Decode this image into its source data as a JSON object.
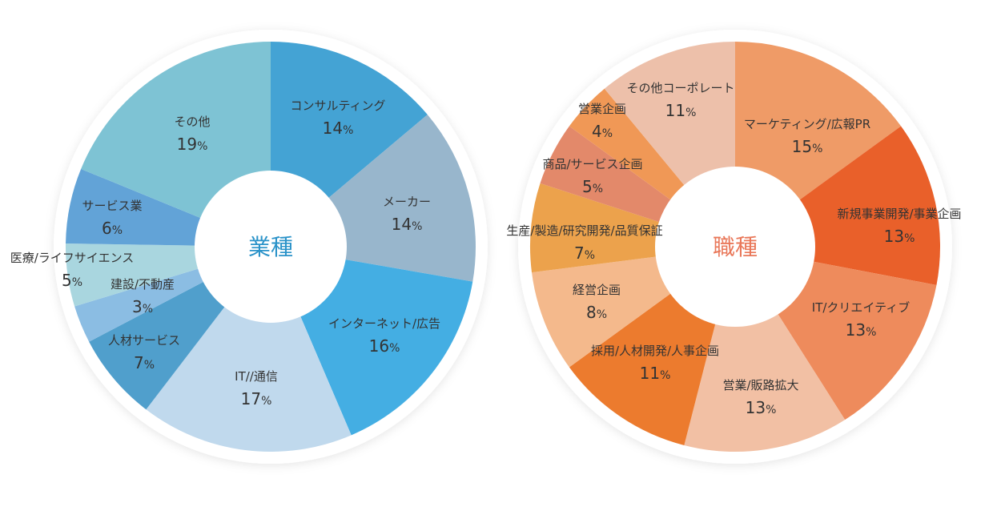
{
  "chart_data": [
    {
      "type": "pie",
      "title": "業種",
      "title_color": "#2b93c9",
      "donut": true,
      "start": "top, clockwise",
      "unit": "%",
      "slices": [
        {
          "label": "コンサルティング",
          "value": 14,
          "color": "#44a3d4"
        },
        {
          "label": "メーカー",
          "value": 14,
          "color": "#98b6cc"
        },
        {
          "label": "インターネット/広告",
          "value": 16,
          "color": "#44aee3"
        },
        {
          "label": "IT//通信",
          "value": 17,
          "color": "#c0d9ed"
        },
        {
          "label": "人材サービス",
          "value": 7,
          "color": "#509fcc"
        },
        {
          "label": "建設/不動産",
          "value": 3,
          "color": "#8bbde3"
        },
        {
          "label": "医療/ライフサイエンス",
          "value": 5,
          "color": "#a9d6df"
        },
        {
          "label": "サービス業",
          "value": 6,
          "color": "#62a3d7"
        },
        {
          "label": "その他",
          "value": 19,
          "color": "#7ec3d4"
        }
      ]
    },
    {
      "type": "pie",
      "title": "職種",
      "title_color": "#e9785a",
      "donut": true,
      "start": "top, clockwise",
      "unit": "%",
      "slices": [
        {
          "label": "マーケティング/広報PR",
          "value": 15,
          "color": "#ef9b67"
        },
        {
          "label": "新規事業開発/事業企画",
          "value": 13,
          "color": "#e9602a"
        },
        {
          "label": "IT/クリエイティブ",
          "value": 13,
          "color": "#ee8b5c"
        },
        {
          "label": "営業/販路拡大",
          "value": 13,
          "color": "#f2c0a4"
        },
        {
          "label": "採用/人材開発/人事企画",
          "value": 11,
          "color": "#ec7b2e"
        },
        {
          "label": "経営企画",
          "value": 8,
          "color": "#f4b98c"
        },
        {
          "label": "生産/製造/研究開発/品質保証",
          "value": 7,
          "color": "#eca24c"
        },
        {
          "label": "商品/サービス企画",
          "value": 5,
          "color": "#e3896a"
        },
        {
          "label": "営業企画",
          "value": 4,
          "color": "#f09856"
        },
        {
          "label": "その他コーポレート",
          "value": 11,
          "color": "#edc0aa"
        }
      ]
    }
  ]
}
